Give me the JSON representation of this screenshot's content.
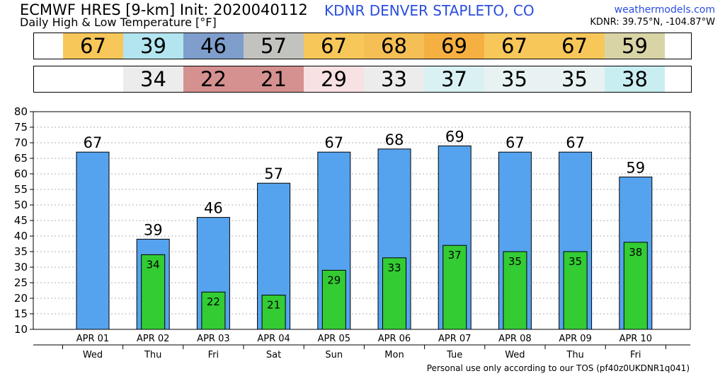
{
  "header": {
    "title": "ECMWF HRES [9-km] Init: 2020040112",
    "subtitle": "Daily High & Low Temperature [°F]",
    "station": "KDNR DENVER STAPLETO, CO",
    "site": "weathermodels.com",
    "coords": "KDNR: 39.75°N, -104.87°W"
  },
  "footer": "Personal use only according to our TOS (pf40z0UKDNR1q041)",
  "colors": {
    "high_bar": "#55a3ee",
    "low_bar": "#33cc33",
    "grid": "#b0b0b0"
  },
  "high_cells": [
    {
      "value": "67",
      "color": "#f7c75a"
    },
    {
      "value": "39",
      "color": "#b2e5ef"
    },
    {
      "value": "46",
      "color": "#7f9ecc"
    },
    {
      "value": "57",
      "color": "#c2c2bf"
    },
    {
      "value": "67",
      "color": "#f7c75a"
    },
    {
      "value": "68",
      "color": "#f5bf55"
    },
    {
      "value": "69",
      "color": "#f6b042"
    },
    {
      "value": "67",
      "color": "#f7c75a"
    },
    {
      "value": "67",
      "color": "#f7c75a"
    },
    {
      "value": "59",
      "color": "#d9d4a6"
    }
  ],
  "low_cells": [
    {
      "value": "",
      "color": "#ffffff"
    },
    {
      "value": "34",
      "color": "#ececec"
    },
    {
      "value": "22",
      "color": "#d49190"
    },
    {
      "value": "21",
      "color": "#d49190"
    },
    {
      "value": "29",
      "color": "#f8e1e3"
    },
    {
      "value": "33",
      "color": "#ececec"
    },
    {
      "value": "37",
      "color": "#d9f1f3"
    },
    {
      "value": "35",
      "color": "#e8f2f2"
    },
    {
      "value": "35",
      "color": "#e8f2f2"
    },
    {
      "value": "38",
      "color": "#c9eef2"
    }
  ],
  "chart_data": {
    "type": "bar",
    "categories": [
      "APR 01",
      "APR 02",
      "APR 03",
      "APR 04",
      "APR 05",
      "APR 06",
      "APR 07",
      "APR 08",
      "APR 09",
      "APR 10"
    ],
    "days": [
      "Wed",
      "Thu",
      "Fri",
      "Sat",
      "Sun",
      "Mon",
      "Tue",
      "Wed",
      "Thu",
      "Fri"
    ],
    "series": [
      {
        "values": [
          67,
          39,
          46,
          57,
          67,
          68,
          69,
          67,
          67,
          59
        ]
      },
      {
        "values": [
          null,
          34,
          22,
          21,
          29,
          33,
          37,
          35,
          35,
          38
        ]
      }
    ],
    "ylim": [
      10,
      80
    ],
    "yticks": [
      10,
      15,
      20,
      25,
      30,
      35,
      40,
      45,
      50,
      55,
      60,
      65,
      70,
      75,
      80
    ],
    "grid": true
  }
}
